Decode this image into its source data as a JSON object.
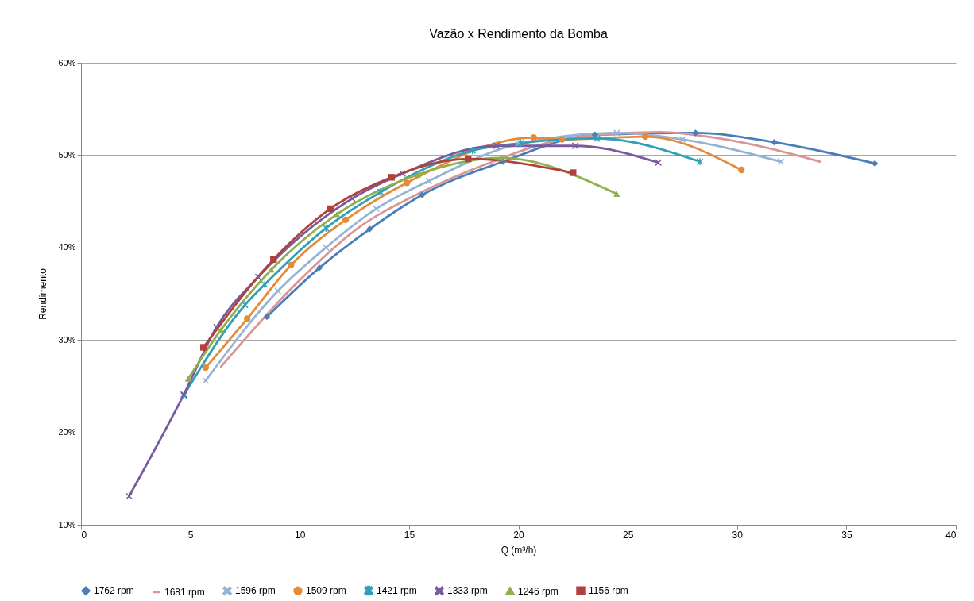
{
  "chart_data": {
    "type": "line",
    "title": "Vazão x Rendimento da Bomba",
    "xlabel": "Q (m³/h)",
    "ylabel": "Rendimento",
    "xlim": [
      0,
      40
    ],
    "xticks": [
      0,
      5,
      10,
      15,
      20,
      25,
      30,
      35,
      40
    ],
    "ylim": [
      10,
      60
    ],
    "yticks": [
      {
        "value": 10,
        "label": "10%"
      },
      {
        "value": 20,
        "label": "20%"
      },
      {
        "value": 30,
        "label": "30%"
      },
      {
        "value": 40,
        "label": "40%"
      },
      {
        "value": 50,
        "label": "50%"
      },
      {
        "value": 60,
        "label": "60%"
      }
    ],
    "grid": "y",
    "legend": "bottom",
    "series": [
      {
        "name": "1762 rpm",
        "color": "#4a7ebb",
        "marker": "diamond",
        "x": [
          8.5,
          10.9,
          13.2,
          15.6,
          19.3,
          23.5,
          28.1,
          31.7,
          36.3
        ],
        "values": [
          32.5,
          37.8,
          42.0,
          45.7,
          49.3,
          52.2,
          52.4,
          51.4,
          49.1
        ]
      },
      {
        "name": "1681 rpm",
        "color": "#da9694",
        "marker": "none",
        "x": [
          6.4,
          9.8,
          12.6,
          15.5,
          18.5,
          22.5,
          26.5,
          29.2,
          33.8
        ],
        "values": [
          27.1,
          36.0,
          42.0,
          45.9,
          49.0,
          51.9,
          52.5,
          51.8,
          49.3
        ]
      },
      {
        "name": "1596 rpm",
        "color": "#95b3d7",
        "marker": "cross",
        "x": [
          5.7,
          9.0,
          11.2,
          13.5,
          15.9,
          20.0,
          24.5,
          27.5,
          32.0
        ],
        "values": [
          25.6,
          35.3,
          40.0,
          44.2,
          47.2,
          51.2,
          52.4,
          51.7,
          49.3
        ]
      },
      {
        "name": "1509 rpm",
        "color": "#e48b3b",
        "marker": "circle",
        "x": [
          5.7,
          7.6,
          9.6,
          12.1,
          14.9,
          20.7,
          22.0,
          25.8,
          30.2
        ],
        "values": [
          27.0,
          32.3,
          38.1,
          43.0,
          47.0,
          51.9,
          51.7,
          52.0,
          48.4
        ]
      },
      {
        "name": "1421 rpm",
        "color": "#31a0b6",
        "marker": "star",
        "x": [
          4.7,
          7.5,
          8.4,
          11.2,
          13.7,
          17.9,
          20.1,
          23.6,
          28.3
        ],
        "values": [
          24.0,
          33.8,
          36.0,
          42.1,
          46.0,
          50.5,
          51.3,
          51.8,
          49.3
        ]
      },
      {
        "name": "1333 rpm",
        "color": "#7a5a9e",
        "marker": "cross",
        "x": [
          2.2,
          4.7,
          6.2,
          8.1,
          12.4,
          14.7,
          19.0,
          22.6,
          26.4
        ],
        "values": [
          13.1,
          24.1,
          31.4,
          36.8,
          45.3,
          48.0,
          51.0,
          51.0,
          49.2
        ]
      },
      {
        "name": "1246 rpm",
        "color": "#8eb04f",
        "marker": "triangle",
        "x": [
          4.9,
          6.4,
          8.7,
          11.7,
          15.4,
          19.2,
          24.5
        ],
        "values": [
          25.8,
          31.1,
          37.6,
          43.6,
          47.9,
          49.7,
          45.8
        ]
      },
      {
        "name": "1156 rpm",
        "color": "#b0413e",
        "marker": "square",
        "x": [
          5.6,
          8.8,
          11.4,
          14.2,
          17.7,
          22.5
        ],
        "values": [
          29.2,
          38.7,
          44.2,
          47.6,
          49.6,
          48.1
        ]
      }
    ]
  }
}
